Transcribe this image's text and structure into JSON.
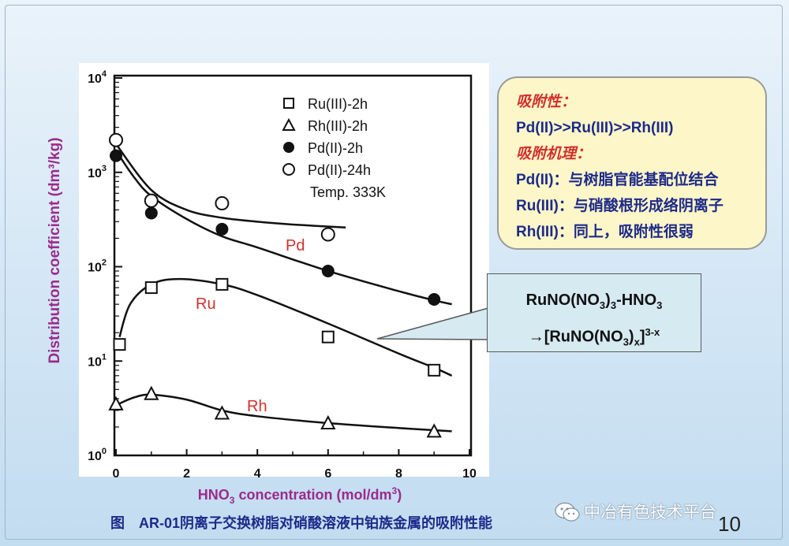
{
  "chart_data": {
    "type": "scatter",
    "xlabel": "HNO",
    "xlabel_sub": "3",
    "xlabel_rest": " concentration (mol/dm",
    "xlabel_sup": "3",
    "xlabel_end": ")",
    "ylabel": "Distribution coefficient (dm³/kg)",
    "xlim": [
      0,
      10
    ],
    "ylim": [
      1,
      10000
    ],
    "yscale": "log",
    "x_ticks": [
      0,
      2,
      4,
      6,
      8,
      10
    ],
    "x_tick_labels": [
      "0",
      "2",
      "4",
      "6",
      "8",
      "10"
    ],
    "y_ticks": [
      1,
      10,
      100,
      1000,
      10000
    ],
    "y_tick_base": "10",
    "y_tick_exps": [
      "0",
      "1",
      "2",
      "3",
      "4"
    ],
    "legend_position": "top-center",
    "series": [
      {
        "name": "Ru(III)-2h",
        "marker": "square-open",
        "x": [
          0.1,
          1,
          3,
          6,
          9
        ],
        "y": [
          15,
          60,
          65,
          18,
          8
        ]
      },
      {
        "name": "Rh(III)-2h",
        "marker": "triangle-open",
        "x": [
          0,
          1,
          3,
          6,
          9
        ],
        "y": [
          3.5,
          4.5,
          2.8,
          2.2,
          1.8
        ]
      },
      {
        "name": "Pd(II)-2h",
        "marker": "circle-filled",
        "x": [
          0,
          1,
          3,
          6,
          9
        ],
        "y": [
          1500,
          370,
          250,
          90,
          45
        ]
      },
      {
        "name": "Pd(II)-24h",
        "marker": "circle-open",
        "x": [
          0,
          1,
          3,
          6
        ],
        "y": [
          2200,
          500,
          470,
          220
        ]
      }
    ],
    "fit_curves": [
      {
        "x": [
          0,
          0.5,
          1,
          2,
          3,
          4,
          6,
          8,
          9,
          9.5
        ],
        "y": [
          1700,
          900,
          560,
          320,
          210,
          160,
          90,
          55,
          44,
          40
        ]
      },
      {
        "x": [
          0,
          1,
          2,
          3,
          4,
          5,
          6.5
        ],
        "y": [
          2000,
          650,
          400,
          330,
          300,
          280,
          260
        ]
      },
      {
        "x": [
          0.1,
          0.4,
          1,
          1.8,
          3,
          4,
          6,
          8,
          9,
          9.5
        ],
        "y": [
          18,
          40,
          65,
          74,
          65,
          50,
          25,
          12,
          8.5,
          7
        ]
      },
      {
        "x": [
          0,
          0.5,
          1,
          2,
          3,
          4,
          6,
          8,
          9.5
        ],
        "y": [
          3.4,
          4.1,
          4.4,
          3.9,
          3.0,
          2.6,
          2.2,
          1.95,
          1.8
        ]
      }
    ],
    "annotations": [
      "Pd",
      "Ru",
      "Rh"
    ],
    "legend_note": "Temp. 333K"
  },
  "info": {
    "title1": "吸附性：",
    "line1": "Pd(II)>>Ru(III)>>Rh(III)",
    "title2": "吸附机理：",
    "line2": "Pd(II)：与树脂官能基配位结合",
    "line3": "Ru(III)：与硝酸根形成络阴离子",
    "line4": "Rh(III)：同上，吸附性很弱"
  },
  "callout": {
    "a": "RuNO(NO",
    "a_sub": "3",
    "a_end": ")",
    "a_sub2": "3",
    "a_tail": "-HNO",
    "a_sub3": "3",
    "b": "→[RuNO(NO",
    "b_sub": "3",
    "b_mid": ")",
    "b_sub2": "x",
    "b_end": "]",
    "b_sup": "3-x"
  },
  "caption": "图　AR-01阴离子交换树脂对硝酸溶液中铂族金属的吸附性能",
  "watermark": "中冶有色技术平台",
  "page_number": "10",
  "colors": {
    "plot_axes": "#111111",
    "ylabel": "#9b2a8c",
    "xlabel": "#9b2a8c",
    "annotation": "#d0312d",
    "info_title": "#d0312d",
    "info_text": "#1d2a8a",
    "caption": "#1d2a8a"
  }
}
